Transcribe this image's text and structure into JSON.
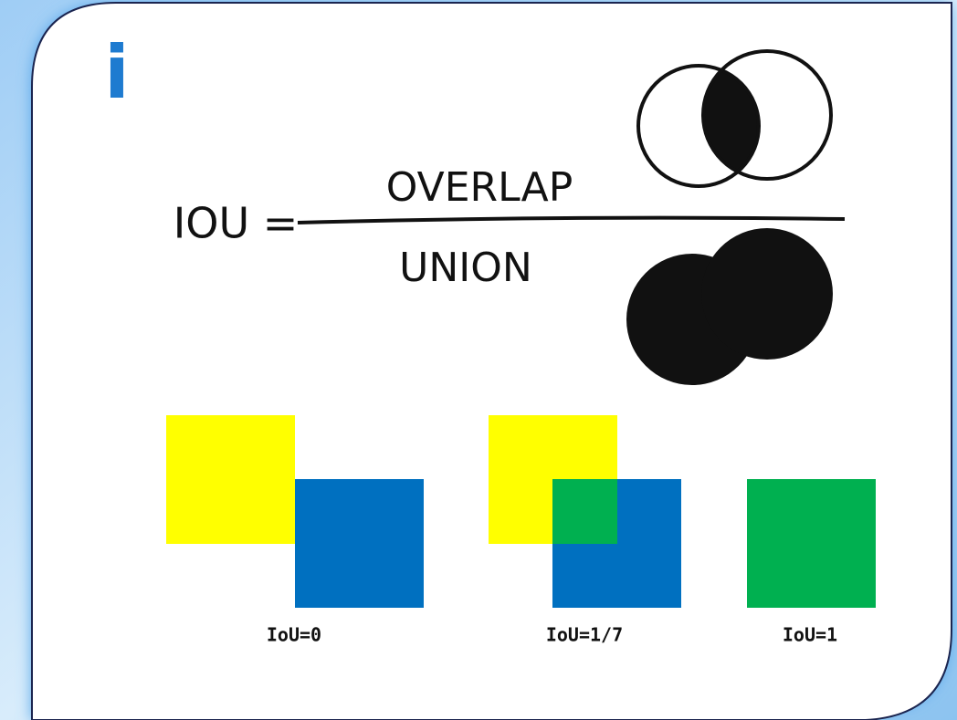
{
  "icon": "i",
  "formula": {
    "lhs": "IOU =",
    "numerator": "OVERLAP",
    "denominator": "UNION"
  },
  "examples": [
    {
      "label": "IoU=0"
    },
    {
      "label": "IoU=1/7"
    },
    {
      "label": "IoU=1"
    }
  ]
}
